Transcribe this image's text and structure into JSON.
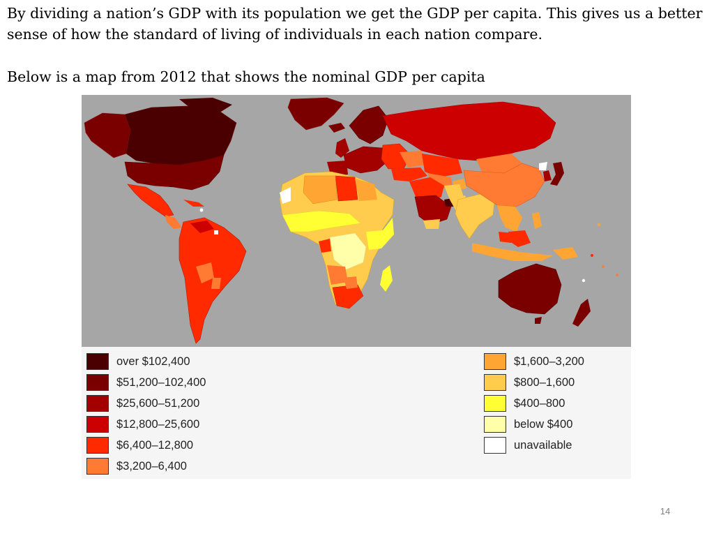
{
  "slide": {
    "intro_text": "By dividing a nation’s GDP with its population we get the GDP per capita.  This gives us a better sense of how the standard of living of individuals in each nation compare.",
    "map_caption": "Below is a map from 2012 that shows the nominal GDP per capita",
    "page_number": "14"
  },
  "map": {
    "ocean_color": "#a6a6a6",
    "legend_left": [
      {
        "label": "over $102,400",
        "color": "#4a0000"
      },
      {
        "label": "$51,200–102,400",
        "color": "#7a0000"
      },
      {
        "label": "$25,600–51,200",
        "color": "#a30000"
      },
      {
        "label": "$12,800–25,600",
        "color": "#cc0000"
      },
      {
        "label": "$6,400–12,800",
        "color": "#ff2a00"
      },
      {
        "label": "$3,200–6,400",
        "color": "#ff7a33"
      }
    ],
    "legend_right": [
      {
        "label": "$1,600–3,200",
        "color": "#ffa533"
      },
      {
        "label": "$800–1,600",
        "color": "#ffcc4d"
      },
      {
        "label": "$400–800",
        "color": "#ffff33"
      },
      {
        "label": "below $400",
        "color": "#ffffaa"
      },
      {
        "label": "unavailable",
        "color": "#ffffff"
      }
    ]
  }
}
